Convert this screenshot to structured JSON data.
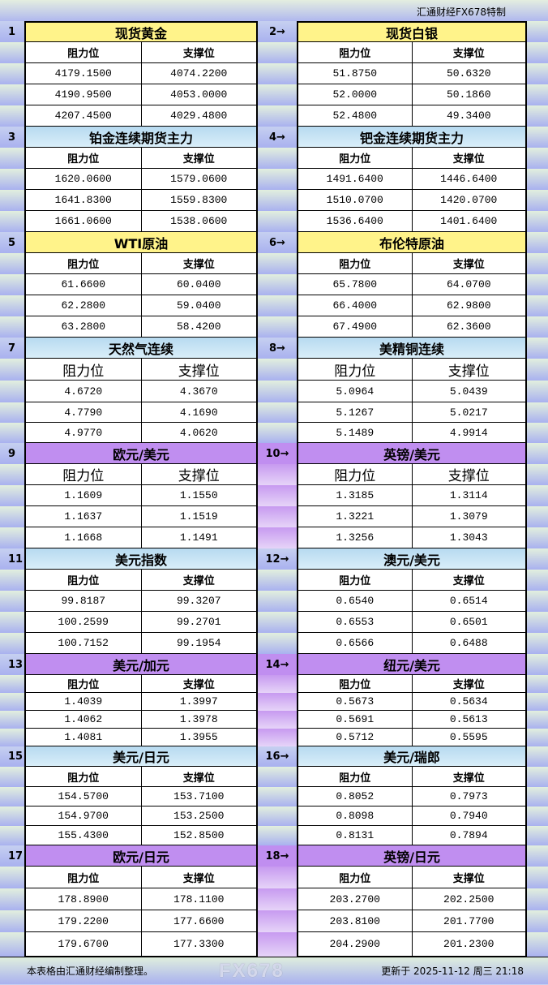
{
  "top_title": "汇通财经FX678特制",
  "labels": {
    "resistance": "阻力位",
    "support": "支撑位"
  },
  "colors": {
    "yellow": "#fff38a",
    "blue": "#b7daf0",
    "purple": "#c08ef0"
  },
  "pairs": [
    {
      "left": {
        "num": "1",
        "name": "现货黄金",
        "style": "yellow",
        "rows": [
          [
            "4179.1500",
            "4074.2200"
          ],
          [
            "4190.9500",
            "4053.0000"
          ],
          [
            "4207.4500",
            "4029.4800"
          ]
        ]
      },
      "right": {
        "num": "2→",
        "name": "现货白银",
        "rows": [
          [
            "51.8750",
            "50.6320"
          ],
          [
            "52.0000",
            "50.1860"
          ],
          [
            "52.4800",
            "49.3400"
          ]
        ]
      },
      "h": [
        26,
        26,
        26,
        26,
        26
      ]
    },
    {
      "left": {
        "num": "3",
        "name": "铂金连续期货主力",
        "style": "blue",
        "rows": [
          [
            "1620.0600",
            "1579.0600"
          ],
          [
            "1641.8300",
            "1559.8300"
          ],
          [
            "1661.0600",
            "1538.0600"
          ]
        ]
      },
      "right": {
        "num": "4→",
        "name": "钯金连续期货主力",
        "rows": [
          [
            "1491.6400",
            "1446.6400"
          ],
          [
            "1510.0700",
            "1420.0700"
          ],
          [
            "1536.6400",
            "1401.6400"
          ]
        ]
      },
      "h": [
        26,
        26,
        26,
        26,
        26
      ]
    },
    {
      "left": {
        "num": "5",
        "name": "WTI原油",
        "style": "yellow",
        "rows": [
          [
            "61.6600",
            "60.0400"
          ],
          [
            "62.2800",
            "59.0400"
          ],
          [
            "63.2800",
            "58.4200"
          ]
        ]
      },
      "right": {
        "num": "6→",
        "name": "布伦特原油",
        "rows": [
          [
            "65.7800",
            "64.0700"
          ],
          [
            "66.4000",
            "62.9800"
          ],
          [
            "67.4900",
            "62.3600"
          ]
        ]
      },
      "h": [
        26,
        26,
        26,
        26,
        26
      ]
    },
    {
      "left": {
        "num": "7",
        "name": "天然气连续",
        "style": "blue",
        "big": true,
        "rows": [
          [
            "4.6720",
            "4.3670"
          ],
          [
            "4.7790",
            "4.1690"
          ],
          [
            "4.9770",
            "4.0620"
          ]
        ]
      },
      "right": {
        "num": "8→",
        "name": "美精铜连续",
        "rows": [
          [
            "5.0964",
            "5.0439"
          ],
          [
            "5.1267",
            "5.0217"
          ],
          [
            "5.1489",
            "4.9914"
          ]
        ]
      },
      "h": [
        26,
        27,
        27,
        25,
        25
      ]
    },
    {
      "left": {
        "num": "9",
        "name": "欧元/美元",
        "style": "purple",
        "big": true,
        "rows": [
          [
            "1.1609",
            "1.1550"
          ],
          [
            "1.1637",
            "1.1519"
          ],
          [
            "1.1668",
            "1.1491"
          ]
        ]
      },
      "right": {
        "num": "10→",
        "name": "英镑/美元",
        "rows": [
          [
            "1.3185",
            "1.3114"
          ],
          [
            "1.3221",
            "1.3079"
          ],
          [
            "1.3256",
            "1.3043"
          ]
        ]
      },
      "h": [
        26,
        26,
        26,
        26,
        26
      ]
    },
    {
      "left": {
        "num": "11",
        "name": "美元指数",
        "style": "blue",
        "rows": [
          [
            "99.8187",
            "99.3207"
          ],
          [
            "100.2599",
            "99.2701"
          ],
          [
            "100.7152",
            "99.1954"
          ]
        ]
      },
      "right": {
        "num": "12→",
        "name": "澳元/美元",
        "rows": [
          [
            "0.6540",
            "0.6514"
          ],
          [
            "0.6553",
            "0.6501"
          ],
          [
            "0.6566",
            "0.6488"
          ]
        ]
      },
      "h": [
        26,
        26,
        26,
        26,
        26
      ]
    },
    {
      "left": {
        "num": "13",
        "name": "美元/加元",
        "style": "purple",
        "rows": [
          [
            "1.4039",
            "1.3997"
          ],
          [
            "1.4062",
            "1.3978"
          ],
          [
            "1.4081",
            "1.3955"
          ]
        ]
      },
      "right": {
        "num": "14→",
        "name": "纽元/美元",
        "rows": [
          [
            "0.5673",
            "0.5634"
          ],
          [
            "0.5691",
            "0.5613"
          ],
          [
            "0.5712",
            "0.5595"
          ]
        ]
      },
      "h": [
        26,
        22,
        22,
        22,
        22
      ]
    },
    {
      "left": {
        "num": "15",
        "name": "美元/日元",
        "style": "blue",
        "rows": [
          [
            "154.5700",
            "153.7100"
          ],
          [
            "154.9700",
            "153.2500"
          ],
          [
            "155.4300",
            "152.8500"
          ]
        ]
      },
      "right": {
        "num": "16→",
        "name": "美元/瑞郎",
        "rows": [
          [
            "0.8052",
            "0.7973"
          ],
          [
            "0.8098",
            "0.7940"
          ],
          [
            "0.8131",
            "0.7894"
          ]
        ]
      },
      "h": [
        25,
        25,
        24,
        24,
        24
      ]
    },
    {
      "left": {
        "num": "17",
        "name": "欧元/日元",
        "style": "purple",
        "rows": [
          [
            "178.8900",
            "178.1100"
          ],
          [
            "179.2200",
            "177.6600"
          ],
          [
            "179.6700",
            "177.3300"
          ]
        ]
      },
      "right": {
        "num": "18→",
        "name": "英镑/日元",
        "rows": [
          [
            "203.2700",
            "202.2500"
          ],
          [
            "203.8100",
            "201.7700"
          ],
          [
            "204.2900",
            "201.2300"
          ]
        ]
      },
      "h": [
        26,
        27,
        27,
        27,
        30
      ]
    }
  ],
  "footer": {
    "note": "本表格由汇通财经编制整理。",
    "updated": "更新于 2025-11-12 周三 21:18"
  },
  "watermark": "FX678"
}
